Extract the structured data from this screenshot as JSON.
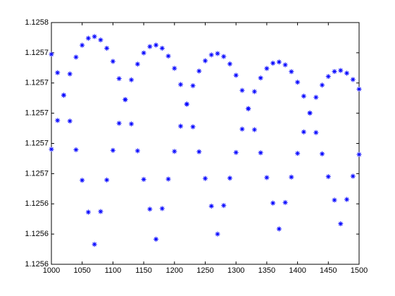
{
  "chart_data": {
    "type": "scatter",
    "x": [
      1000,
      1010,
      1020,
      1030,
      1040,
      1050,
      1060,
      1070,
      1080,
      1090,
      1100,
      1110,
      1120,
      1130,
      1140,
      1150,
      1160,
      1170,
      1180,
      1190,
      1200,
      1210,
      1220,
      1230,
      1240,
      1250,
      1260,
      1270,
      1280,
      1290,
      1300,
      1310,
      1320,
      1330,
      1340,
      1350,
      1360,
      1370,
      1380,
      1390,
      1400,
      1410,
      1420,
      1430,
      1440,
      1450,
      1460,
      1470,
      1480,
      1490,
      1500
    ],
    "series": [
      {
        "color": "#0000ff",
        "values": [
          1.125739,
          1.1257268,
          1.1257119,
          1.1256948,
          1.1256758,
          1.1256556,
          1.1256345,
          1.1256132,
          1.1256349,
          1.1256558,
          1.1256754,
          1.1256933,
          1.125709,
          1.1257221,
          1.1257325,
          1.1257399,
          1.1257441,
          1.1257451,
          1.125743,
          1.1257378,
          1.1257297,
          1.125719,
          1.125706,
          1.125691,
          1.1256745,
          1.1256568,
          1.1256385,
          1.12562,
          1.1256389,
          1.125657,
          1.125674,
          1.1256895,
          1.125703,
          1.1257143,
          1.1257233,
          1.1257296,
          1.1257331,
          1.1257339,
          1.125732,
          1.1257275,
          1.1257205,
          1.1257113,
          1.1257001,
          1.1256872,
          1.1256731,
          1.125658,
          1.1256425,
          1.1256268,
          1.1256429,
          1.1256583,
          1.1256727
        ]
      },
      {
        "color": "#0000ff",
        "values": [
          1.1256761,
          1.1256952,
          1.1257119,
          1.125726,
          1.1257371,
          1.125745,
          1.1257496,
          1.1257507,
          1.1257485,
          1.125743,
          1.1257343,
          1.1257229,
          1.125709,
          1.1256929,
          1.1256751,
          1.1256562,
          1.1256365,
          1.1256166,
          1.1256369,
          1.1256564,
          1.1256747,
          1.1256914,
          1.125706,
          1.1257182,
          1.1257279,
          1.1257347,
          1.1257386,
          1.1257395,
          1.1257375,
          1.1257326,
          1.1257251,
          1.1257151,
          1.125703,
          1.1256891,
          1.1256738,
          1.1256574,
          1.1256405,
          1.1256234,
          1.1256409,
          1.1256577,
          1.1256734,
          1.1256876,
          1.1257001,
          1.1257105,
          1.1257186,
          1.1257243,
          1.1257276,
          1.1257283,
          1.1257265,
          1.1257223,
          1.1257159
        ]
      }
    ],
    "xlim": [
      1000,
      1500
    ],
    "xticks": [
      1000,
      1050,
      1100,
      1150,
      1200,
      1250,
      1300,
      1350,
      1400,
      1450,
      1500
    ],
    "ylim": [
      1.1256,
      1.12576
    ],
    "yticks": [
      {
        "value": 1.1256,
        "label": "1.1256"
      },
      {
        "value": 1.12562,
        "label": "1.1256"
      },
      {
        "value": 1.12564,
        "label": "1.1256"
      },
      {
        "value": 1.12566,
        "label": "1.1257"
      },
      {
        "value": 1.12568,
        "label": "1.1257"
      },
      {
        "value": 1.1257,
        "label": "1.1257"
      },
      {
        "value": 1.12572,
        "label": "1.1257"
      },
      {
        "value": 1.12574,
        "label": "1.1257"
      },
      {
        "value": 1.12576,
        "label": "1.1258"
      }
    ],
    "grid": false
  }
}
